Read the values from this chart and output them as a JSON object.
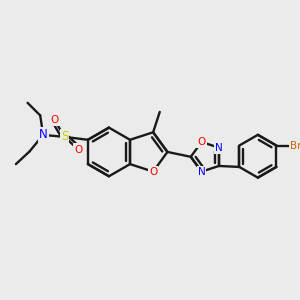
{
  "bg": "#ebebeb",
  "bond_color": "#1a1a1a",
  "atom_colors": {
    "N": "#0000ff",
    "O": "#ff0000",
    "S": "#cccc00",
    "Br": "#cc6600"
  },
  "figsize": [
    3.0,
    3.0
  ],
  "dpi": 100
}
